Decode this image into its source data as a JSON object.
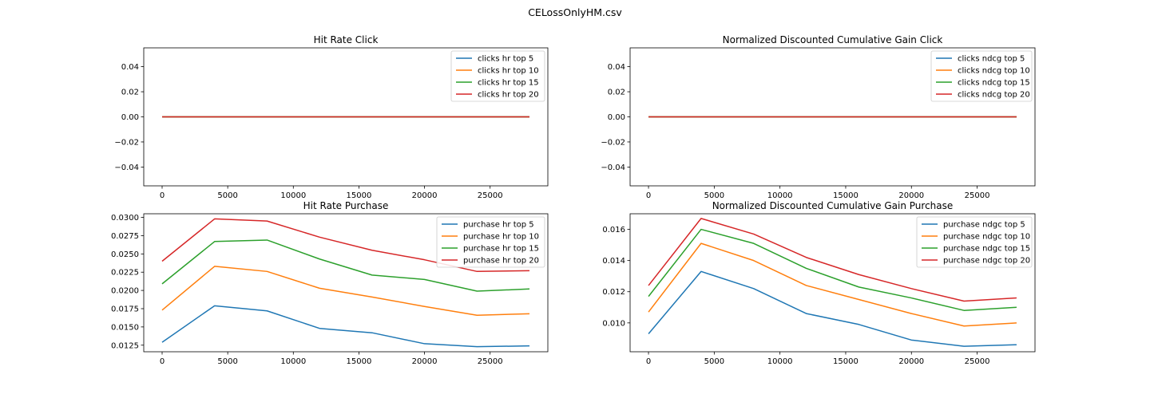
{
  "figure": {
    "suptitle": "CELossOnlyHM.csv"
  },
  "series_colors": [
    "#1f77b4",
    "#ff7f0e",
    "#2ca02c",
    "#d62728"
  ],
  "chart_data": [
    {
      "type": "line",
      "title": "Hit Rate Click",
      "xlabel": "",
      "ylabel": "",
      "xlim": [
        -1400,
        29400
      ],
      "ylim": [
        -0.055,
        0.055
      ],
      "xticks": [
        0,
        5000,
        10000,
        15000,
        20000,
        25000
      ],
      "xtick_labels": [
        "0",
        "5000",
        "10000",
        "15000",
        "20000",
        "25000"
      ],
      "yticks": [
        -0.04,
        -0.02,
        0.0,
        0.02,
        0.04
      ],
      "ytick_labels": [
        "−0.04",
        "−0.02",
        "0.00",
        "0.02",
        "0.04"
      ],
      "legend_position": "top-right",
      "grid": false,
      "x": [
        0,
        4000,
        8000,
        12000,
        16000,
        20000,
        24000,
        28000
      ],
      "series": [
        {
          "name": "clicks hr top 5",
          "values": [
            0,
            0,
            0,
            0,
            0,
            0,
            0,
            0
          ]
        },
        {
          "name": "clicks hr top 10",
          "values": [
            0,
            0,
            0,
            0,
            0,
            0,
            0,
            0
          ]
        },
        {
          "name": "clicks hr top 15",
          "values": [
            0,
            0,
            0,
            0,
            0,
            0,
            0,
            0
          ]
        },
        {
          "name": "clicks hr top 20",
          "values": [
            0,
            0,
            0,
            0,
            0,
            0,
            0,
            0
          ]
        }
      ]
    },
    {
      "type": "line",
      "title": "Normalized Discounted Cumulative Gain Click",
      "xlabel": "",
      "ylabel": "",
      "xlim": [
        -1400,
        29400
      ],
      "ylim": [
        -0.055,
        0.055
      ],
      "xticks": [
        0,
        5000,
        10000,
        15000,
        20000,
        25000
      ],
      "xtick_labels": [
        "0",
        "5000",
        "10000",
        "15000",
        "20000",
        "25000"
      ],
      "yticks": [
        -0.04,
        -0.02,
        0.0,
        0.02,
        0.04
      ],
      "ytick_labels": [
        "−0.04",
        "−0.02",
        "0.00",
        "0.02",
        "0.04"
      ],
      "legend_position": "top-right",
      "grid": false,
      "x": [
        0,
        4000,
        8000,
        12000,
        16000,
        20000,
        24000,
        28000
      ],
      "series": [
        {
          "name": "clicks ndcg top 5",
          "values": [
            0,
            0,
            0,
            0,
            0,
            0,
            0,
            0
          ]
        },
        {
          "name": "clicks ndcg top 10",
          "values": [
            0,
            0,
            0,
            0,
            0,
            0,
            0,
            0
          ]
        },
        {
          "name": "clicks ndcg top 15",
          "values": [
            0,
            0,
            0,
            0,
            0,
            0,
            0,
            0
          ]
        },
        {
          "name": "clicks ndcg top 20",
          "values": [
            0,
            0,
            0,
            0,
            0,
            0,
            0,
            0
          ]
        }
      ]
    },
    {
      "type": "line",
      "title": "Hit Rate Purchase",
      "xlabel": "",
      "ylabel": "",
      "xlim": [
        -1400,
        29400
      ],
      "ylim": [
        0.0116,
        0.0305
      ],
      "xticks": [
        0,
        5000,
        10000,
        15000,
        20000,
        25000
      ],
      "xtick_labels": [
        "0",
        "5000",
        "10000",
        "15000",
        "20000",
        "25000"
      ],
      "yticks": [
        0.0125,
        0.015,
        0.0175,
        0.02,
        0.0225,
        0.025,
        0.0275,
        0.03
      ],
      "ytick_labels": [
        "0.0125",
        "0.0150",
        "0.0175",
        "0.0200",
        "0.0225",
        "0.0250",
        "0.0275",
        "0.0300"
      ],
      "legend_position": "top-right",
      "grid": false,
      "x": [
        0,
        4000,
        8000,
        12000,
        16000,
        20000,
        24000,
        28000
      ],
      "series": [
        {
          "name": "purchase hr top 5",
          "values": [
            0.0129,
            0.0179,
            0.0172,
            0.0148,
            0.0142,
            0.0127,
            0.0123,
            0.0124
          ]
        },
        {
          "name": "purchase hr top 10",
          "values": [
            0.0173,
            0.0233,
            0.0226,
            0.0203,
            0.0191,
            0.0178,
            0.0166,
            0.0168
          ]
        },
        {
          "name": "purchase hr top 15",
          "values": [
            0.0209,
            0.0267,
            0.0269,
            0.0243,
            0.0221,
            0.0215,
            0.0199,
            0.0202
          ]
        },
        {
          "name": "purchase hr top 20",
          "values": [
            0.024,
            0.0298,
            0.0295,
            0.0273,
            0.0255,
            0.0242,
            0.0226,
            0.0227
          ]
        }
      ]
    },
    {
      "type": "line",
      "title": "Normalized Discounted Cumulative Gain Purchase",
      "xlabel": "",
      "ylabel": "",
      "xlim": [
        -1400,
        29400
      ],
      "ylim": [
        0.00815,
        0.017
      ],
      "xticks": [
        0,
        5000,
        10000,
        15000,
        20000,
        25000
      ],
      "xtick_labels": [
        "0",
        "5000",
        "10000",
        "15000",
        "20000",
        "25000"
      ],
      "yticks": [
        0.01,
        0.012,
        0.014,
        0.016
      ],
      "ytick_labels": [
        "0.010",
        "0.012",
        "0.014",
        "0.016"
      ],
      "legend_position": "top-right",
      "grid": false,
      "x": [
        0,
        4000,
        8000,
        12000,
        16000,
        20000,
        24000,
        28000
      ],
      "series": [
        {
          "name": "purchase ndgc top 5",
          "values": [
            0.0093,
            0.0133,
            0.0122,
            0.0106,
            0.0099,
            0.0089,
            0.0085,
            0.0086
          ]
        },
        {
          "name": "purchase ndgc top 10",
          "values": [
            0.0107,
            0.0151,
            0.014,
            0.0124,
            0.0115,
            0.0106,
            0.0098,
            0.01
          ]
        },
        {
          "name": "purchase ndgc top 15",
          "values": [
            0.0117,
            0.016,
            0.0151,
            0.0135,
            0.0123,
            0.0116,
            0.0108,
            0.011
          ]
        },
        {
          "name": "purchase ndgc top 20",
          "values": [
            0.0124,
            0.0167,
            0.0157,
            0.0142,
            0.0131,
            0.0122,
            0.0114,
            0.0116
          ]
        }
      ]
    }
  ]
}
